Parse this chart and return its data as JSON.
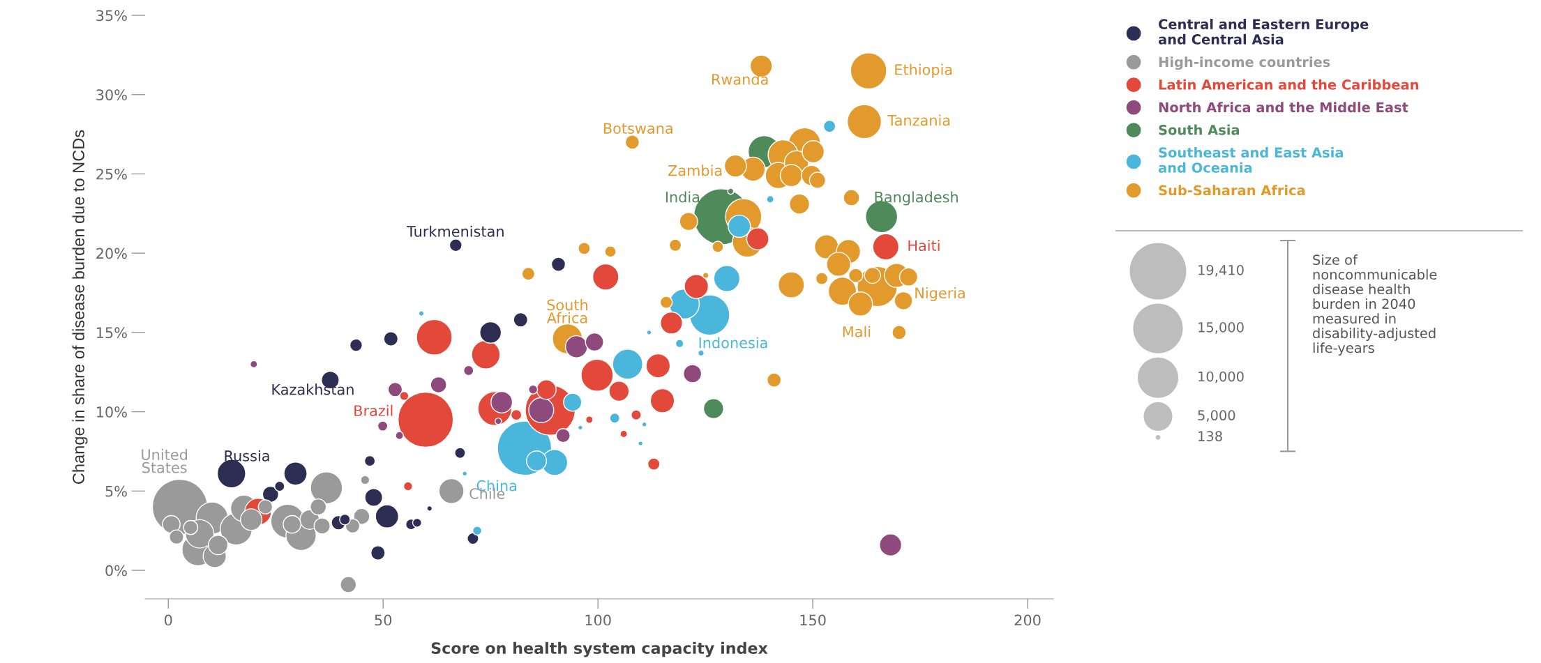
{
  "chart_data": {
    "type": "bubble",
    "xlabel": "Score on health system capacity index",
    "ylabel": "Change in share of disease burden due to NCDs",
    "xlim": [
      -5.4,
      206
    ],
    "xticks": [
      0,
      50,
      100,
      150,
      200
    ],
    "ylim": [
      -1.8,
      35
    ],
    "yticks": [
      {
        "value": 0,
        "label": "0%"
      },
      {
        "value": 5,
        "label": "5%"
      },
      {
        "value": 10,
        "label": "10%"
      },
      {
        "value": 15,
        "label": "15%"
      },
      {
        "value": 20,
        "label": "20%"
      },
      {
        "value": 25,
        "label": "25%"
      },
      {
        "value": 30,
        "label": "30%"
      },
      {
        "value": 35,
        "label": "35%"
      }
    ],
    "grid": false,
    "legend": "top right",
    "marker": "circle",
    "size_legend": [
      {
        "value": 19410,
        "label": "19,410"
      },
      {
        "value": 15000,
        "label": "15,000"
      },
      {
        "value": 10000,
        "label": "10,000"
      },
      {
        "value": 5000,
        "label": "5,000"
      },
      {
        "value": 138,
        "label": "138"
      }
    ],
    "series": [
      {
        "name": "Central and Eastern Europe\nand Central Asia",
        "color": "#2e2d54",
        "x": [
          14.7,
          29.6,
          23.8,
          25.9,
          39.6,
          41.1,
          47.8,
          50.9,
          48.8,
          46.9,
          56.5,
          57.9,
          60.8,
          67.9,
          70.9,
          37.7,
          43.7,
          51.8,
          75.0,
          82.0,
          66.9,
          90.8
        ],
        "values": [
          6.1,
          6.1,
          4.8,
          5.3,
          3.0,
          3.2,
          4.6,
          3.4,
          1.1,
          6.9,
          2.9,
          3.0,
          3.9,
          7.4,
          2.0,
          12.0,
          14.2,
          14.6,
          15.0,
          15.8,
          20.5,
          19.3
        ],
        "sizes": [
          4900,
          3250,
          1550,
          600,
          1230,
          690,
          1900,
          3250,
          1230,
          690,
          690,
          480,
          170,
          690,
          790,
          1900,
          940,
          1230,
          2800,
          1230,
          940,
          1190
        ]
      },
      {
        "name": "High-income countries",
        "color": "#9a9a9a",
        "x": [
          2.7,
          10.2,
          0.7,
          5.2,
          1.9,
          7.3,
          6.9,
          11.6,
          10.8,
          17.6,
          19.3,
          15.8,
          22.6,
          27.8,
          28.8,
          30.9,
          32.9,
          34.9,
          35.8,
          36.8,
          42.9,
          45.0,
          45.8,
          41.9,
          65.9
        ],
        "values": [
          4.0,
          3.3,
          2.9,
          2.7,
          2.1,
          2.3,
          1.3,
          1.6,
          0.9,
          3.9,
          3.2,
          2.6,
          4.0,
          3.1,
          2.9,
          2.2,
          3.2,
          4.0,
          2.8,
          5.2,
          2.8,
          3.4,
          5.7,
          -0.9,
          5.0
        ],
        "sizes": [
          18500,
          6200,
          1900,
          1230,
          1230,
          4900,
          6200,
          2300,
          3250,
          4300,
          2800,
          6200,
          1230,
          6950,
          1900,
          5550,
          2300,
          1550,
          1550,
          6200,
          1230,
          1550,
          480,
          1550,
          3770
        ]
      },
      {
        "name": "Latin American and the Caribbean",
        "color": "#e2493a",
        "x": [
          59.9,
          61.9,
          73.9,
          20.9,
          54.9,
          55.8,
          76.0,
          81.0,
          88.0,
          88.9,
          117.1,
          99.8,
          114.0,
          104.9,
          115.0,
          98.0,
          108.9,
          106.0,
          113.0,
          101.8,
          122.9,
          137.2,
          167.0
        ],
        "values": [
          9.5,
          14.7,
          13.6,
          3.7,
          11.0,
          5.3,
          10.2,
          9.8,
          11.4,
          10.1,
          15.6,
          12.3,
          12.9,
          11.3,
          10.7,
          9.5,
          9.8,
          8.6,
          6.7,
          18.5,
          17.9,
          20.9,
          20.4
        ],
        "sizes": [
          18500,
          7700,
          4900,
          4300,
          480,
          480,
          6950,
          690,
          2300,
          15200,
          2950,
          6240,
          3510,
          2440,
          3510,
          315,
          610,
          315,
          880,
          4120,
          3510,
          2950,
          4120
        ]
      },
      {
        "name": "North Africa and the Middle East",
        "color": "#8e4a7c",
        "x": [
          19.9,
          52.8,
          62.9,
          49.9,
          53.8,
          69.9,
          77.6,
          84.9,
          76.8,
          86.8,
          99.2,
          95.0,
          122.0,
          91.9,
          168.1
        ],
        "values": [
          13.0,
          11.4,
          11.7,
          9.1,
          8.5,
          12.6,
          10.6,
          11.4,
          9.4,
          10.1,
          14.4,
          14.1,
          12.4,
          8.5,
          1.6
        ],
        "sizes": [
          310,
          1230,
          1550,
          600,
          370,
          600,
          2800,
          480,
          250,
          3770,
          1980,
          2950,
          1980,
          1190,
          2950
        ]
      },
      {
        "name": "South Asia",
        "color": "#4f8a5b",
        "x": [
          128.8,
          138.7,
          166.0,
          130.9,
          126.9
        ],
        "values": [
          22.3,
          26.4,
          22.3,
          23.9,
          10.2
        ],
        "sizes": [
          19100,
          6240,
          6240,
          220,
          2440
        ]
      },
      {
        "name": "Southeast and East Asia\nand Oceania",
        "color": "#4bb6dc",
        "x": [
          82.9,
          85.7,
          89.9,
          94.1,
          106.9,
          103.9,
          119.0,
          124.0,
          111.9,
          95.9,
          110.8,
          109.9,
          71.9,
          69.0,
          58.9,
          126.0,
          120.1,
          130.0,
          132.9,
          153.9,
          140.1
        ],
        "values": [
          7.7,
          6.9,
          6.8,
          10.6,
          13.0,
          9.6,
          14.3,
          13.7,
          15.0,
          9.0,
          9.2,
          8.0,
          2.5,
          6.1,
          16.2,
          16.1,
          16.8,
          18.4,
          21.7,
          28.0,
          23.4
        ],
        "sizes": [
          17800,
          2440,
          4120,
          1980,
          5480,
          610,
          390,
          220,
          140,
          138,
          138,
          138,
          480,
          138,
          170,
          9750,
          5480,
          4120,
          3000,
          880,
          315
        ]
      },
      {
        "name": "Sub-Saharan Africa",
        "color": "#e39a2c",
        "x": [
          138.0,
          163.0,
          162.0,
          108.0,
          148.1,
          150.1,
          143.1,
          146.2,
          132.0,
          136.1,
          142.0,
          145.0,
          149.7,
          151.1,
          159.0,
          146.9,
          133.9,
          121.1,
          134.8,
          118.0,
          127.9,
          96.8,
          102.9,
          83.8,
          125.1,
          153.2,
          158.3,
          156.0,
          160.0,
          163.9,
          169.5,
          172.3,
          165.0,
          156.9,
          145.0,
          152.1,
          161.1,
          171.1,
          115.9,
          92.9,
          170.1,
          141.0
        ],
        "values": [
          31.8,
          31.5,
          28.3,
          27.0,
          26.9,
          26.4,
          26.2,
          25.7,
          25.5,
          25.3,
          24.9,
          24.9,
          24.9,
          24.6,
          23.5,
          23.1,
          22.3,
          22.0,
          20.7,
          20.5,
          20.4,
          20.3,
          20.1,
          18.7,
          18.6,
          20.4,
          20.1,
          19.3,
          18.6,
          18.6,
          18.6,
          18.5,
          17.9,
          17.6,
          18.0,
          18.4,
          16.8,
          17.0,
          16.9,
          14.6,
          15.0,
          12.0
        ],
        "sizes": [
          2950,
          7900,
          7040,
          1190,
          6240,
          2950,
          5480,
          3510,
          2950,
          3510,
          4120,
          2950,
          2440,
          1560,
          1560,
          2440,
          7900,
          1980,
          5480,
          880,
          760,
          880,
          760,
          1000,
          220,
          3510,
          3510,
          3510,
          1190,
          1560,
          3510,
          1980,
          9750,
          4780,
          4120,
          880,
          3510,
          1980,
          880,
          5480,
          1190,
          1190
        ]
      }
    ],
    "annotations": [
      {
        "text": "Turkmenistan",
        "x": 66.9,
        "y": 20.5
      },
      {
        "text": "Rwanda",
        "x": 138.0,
        "y": 31.8
      },
      {
        "text": "Ethiopia",
        "x": 163.0,
        "y": 31.5
      },
      {
        "text": "Tanzania",
        "x": 162.0,
        "y": 28.3
      },
      {
        "text": "Botswana",
        "x": 108.0,
        "y": 27.0
      },
      {
        "text": "Zambia",
        "x": 132.0,
        "y": 25.5
      },
      {
        "text": "India",
        "x": 128.8,
        "y": 22.3
      },
      {
        "text": "Bangladesh",
        "x": 166.0,
        "y": 22.3
      },
      {
        "text": "Haiti",
        "x": 167.0,
        "y": 20.4
      },
      {
        "text": "Nigeria",
        "x": 165.0,
        "y": 17.9
      },
      {
        "text": "Mali",
        "x": 161.1,
        "y": 16.8
      },
      {
        "text": "South\nAfrica",
        "x": 92.9,
        "y": 14.6
      },
      {
        "text": "Indonesia",
        "x": 126.0,
        "y": 16.1
      },
      {
        "text": "Kazakhstan",
        "x": 37.7,
        "y": 12.0
      },
      {
        "text": "Brazil",
        "x": 59.9,
        "y": 9.5
      },
      {
        "text": "Russia",
        "x": 14.7,
        "y": 6.1
      },
      {
        "text": "United\nStates",
        "x": 2.7,
        "y": 4.0
      },
      {
        "text": "China",
        "x": 82.9,
        "y": 7.7
      },
      {
        "text": "Chile",
        "x": 65.9,
        "y": 5.0
      },
      "Size of\nnoncommunicable\ndisease health\nburden in 2040\nmeasured in\ndisability-adjusted\nlife-years"
    ]
  }
}
